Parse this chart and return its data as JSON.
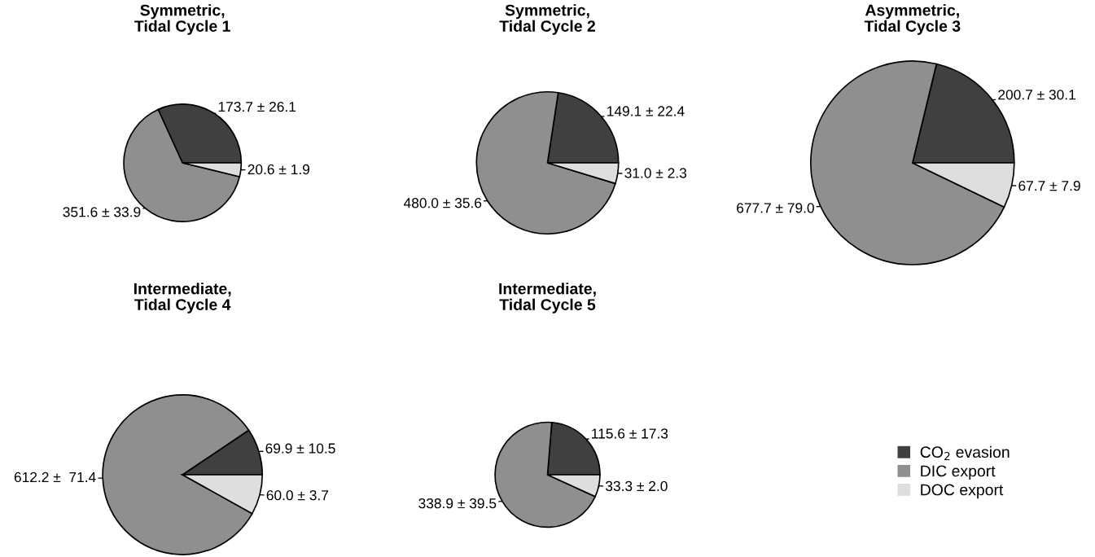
{
  "chart_data": [
    {
      "type": "pie",
      "title": "Symmetric,\nTidal Cycle 1",
      "categories": [
        "CO$_{2}$ evasion",
        "DIC export",
        "DOC export"
      ],
      "values": [
        173.7,
        351.6,
        20.6
      ],
      "colors": [
        "#404040",
        "#8f8f8f",
        "#dedede"
      ],
      "value_labels": [
        "173.7 ± 26.1",
        "351.6 ± 33.9",
        "20.6 ± 1.9"
      ],
      "legend": "bottom right"
    },
    {
      "type": "pie",
      "title": "Symmetric,\nTidal Cycle 2",
      "categories": [
        null,
        null,
        null
      ],
      "values": [
        149.1,
        480.0,
        31.0
      ],
      "colors": [
        "#404040",
        "#8f8f8f",
        "#dedede"
      ],
      "value_labels": [
        "149.1 ± 22.4",
        "480.0 ± 35.6",
        "31.0 ± 2.3"
      ]
    },
    {
      "type": "pie",
      "title": "Asymmetric,\nTidal Cycle 3",
      "categories": [
        null,
        null,
        null
      ],
      "values": [
        200.7,
        677.7,
        67.7
      ],
      "colors": [
        "#404040",
        "#8f8f8f",
        "#dedede"
      ],
      "value_labels": [
        "200.7 ± 30.1",
        "677.7 ± 79.0",
        "67.7 ± 7.9"
      ]
    },
    {
      "type": "pie",
      "title": "Intermediate,\nTidal Cycle 4",
      "categories": [
        null,
        null,
        null
      ],
      "values": [
        69.9,
        612.2,
        60.0
      ],
      "colors": [
        "#404040",
        "#8f8f8f",
        "#dedede"
      ],
      "value_labels": [
        "69.9 ± 10.5",
        "612.2 ±  71.4",
        "60.0 ± 3.7"
      ]
    },
    {
      "type": "pie",
      "title": "Intermediate,\nTidal Cycle 5",
      "categories": [
        null,
        null,
        null
      ],
      "values": [
        115.6,
        338.9,
        33.3
      ],
      "colors": [
        "#404040",
        "#8f8f8f",
        "#dedede"
      ],
      "value_labels": [
        "115.6 ± 17.3",
        "338.9 ± 39.5",
        "33.3 ± 2.0"
      ]
    }
  ]
}
